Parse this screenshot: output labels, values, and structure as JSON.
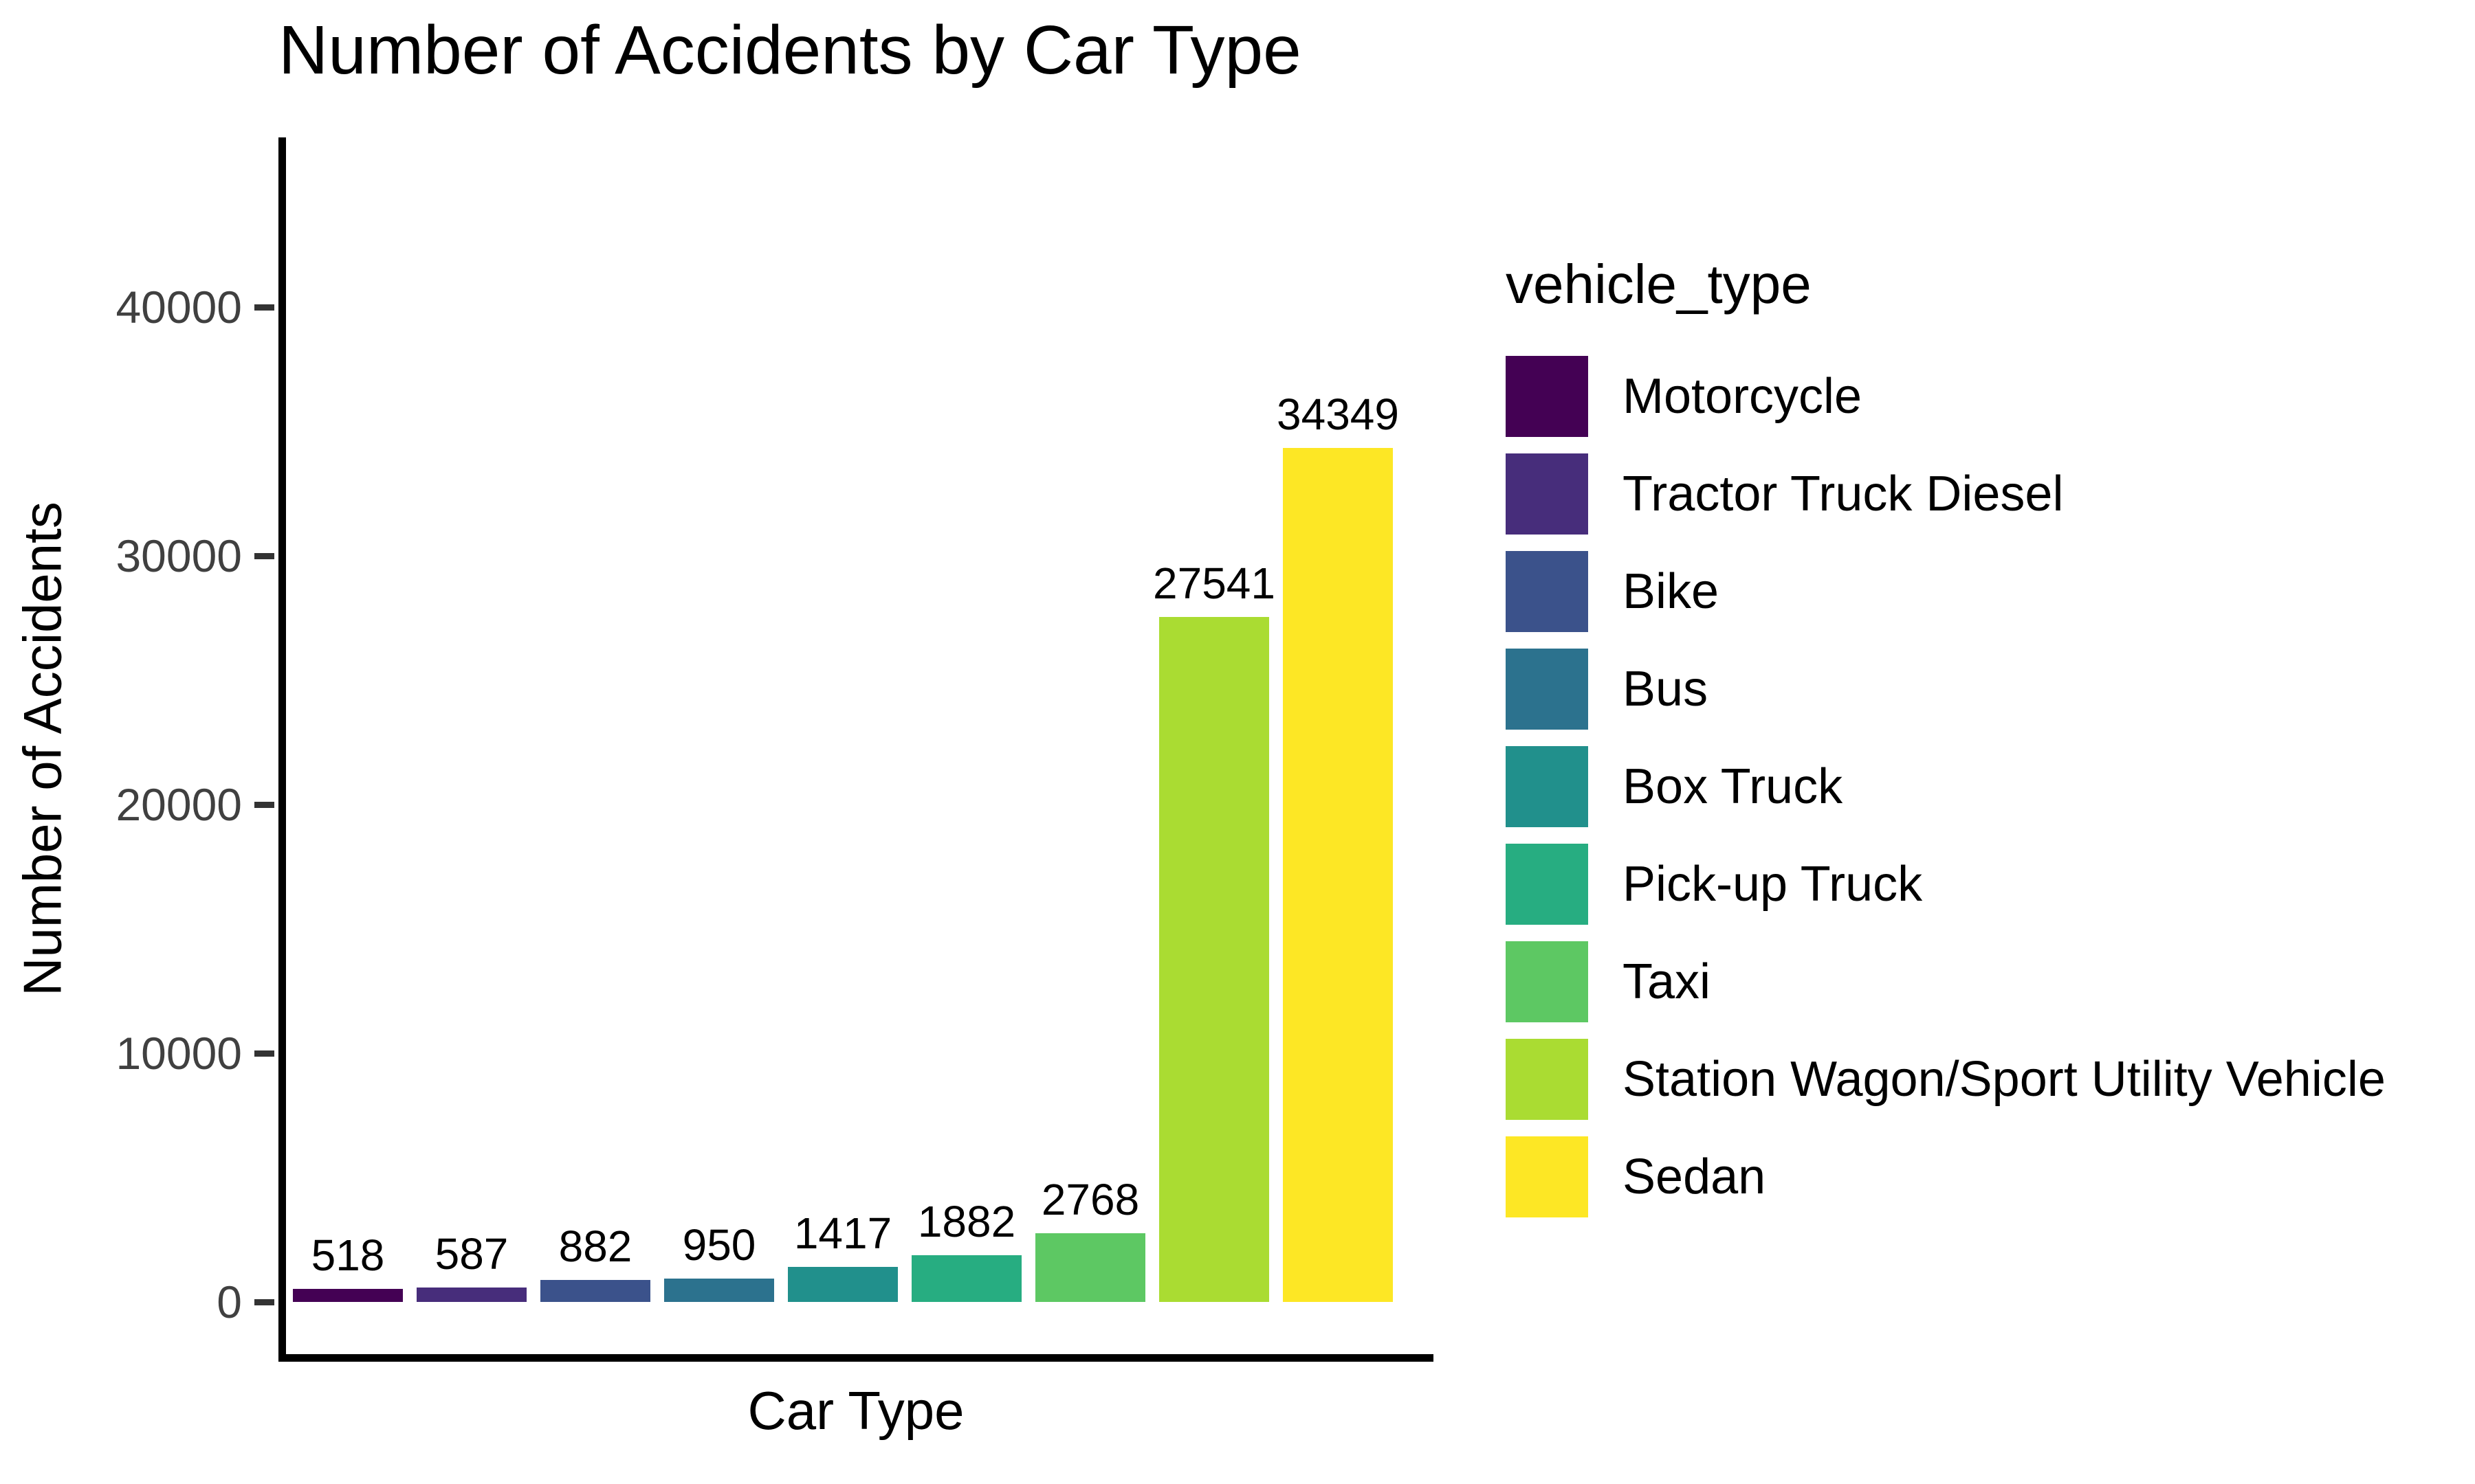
{
  "chart_data": {
    "type": "bar",
    "title": "Number of Accidents by Car Type",
    "xlabel": "Car Type",
    "ylabel": "Number of Accidents",
    "categories": [
      "Motorcycle",
      "Tractor Truck Diesel",
      "Bike",
      "Bus",
      "Box Truck",
      "Pick-up Truck",
      "Taxi",
      "Station Wagon/Sport Utility Vehicle",
      "Sedan"
    ],
    "values": [
      518,
      587,
      882,
      950,
      1417,
      1882,
      2768,
      27541,
      34349
    ],
    "bar_value_labels": [
      "518",
      "587",
      "882",
      "950",
      "1417",
      "1882",
      "2768",
      "27541",
      "34349"
    ],
    "colors": [
      "#440154",
      "#472D7B",
      "#3B528B",
      "#2C728E",
      "#21908C",
      "#27AD81",
      "#5DC863",
      "#AADC32",
      "#FDE725"
    ],
    "yticks": [
      0,
      10000,
      20000,
      30000,
      40000
    ],
    "ylim": [
      0,
      46500
    ],
    "x_tick_labels": [],
    "grid": false,
    "legend": {
      "title": "vehicle_type",
      "position": "right"
    },
    "axis_color": "#000000",
    "tick_label_color": "#404040"
  }
}
